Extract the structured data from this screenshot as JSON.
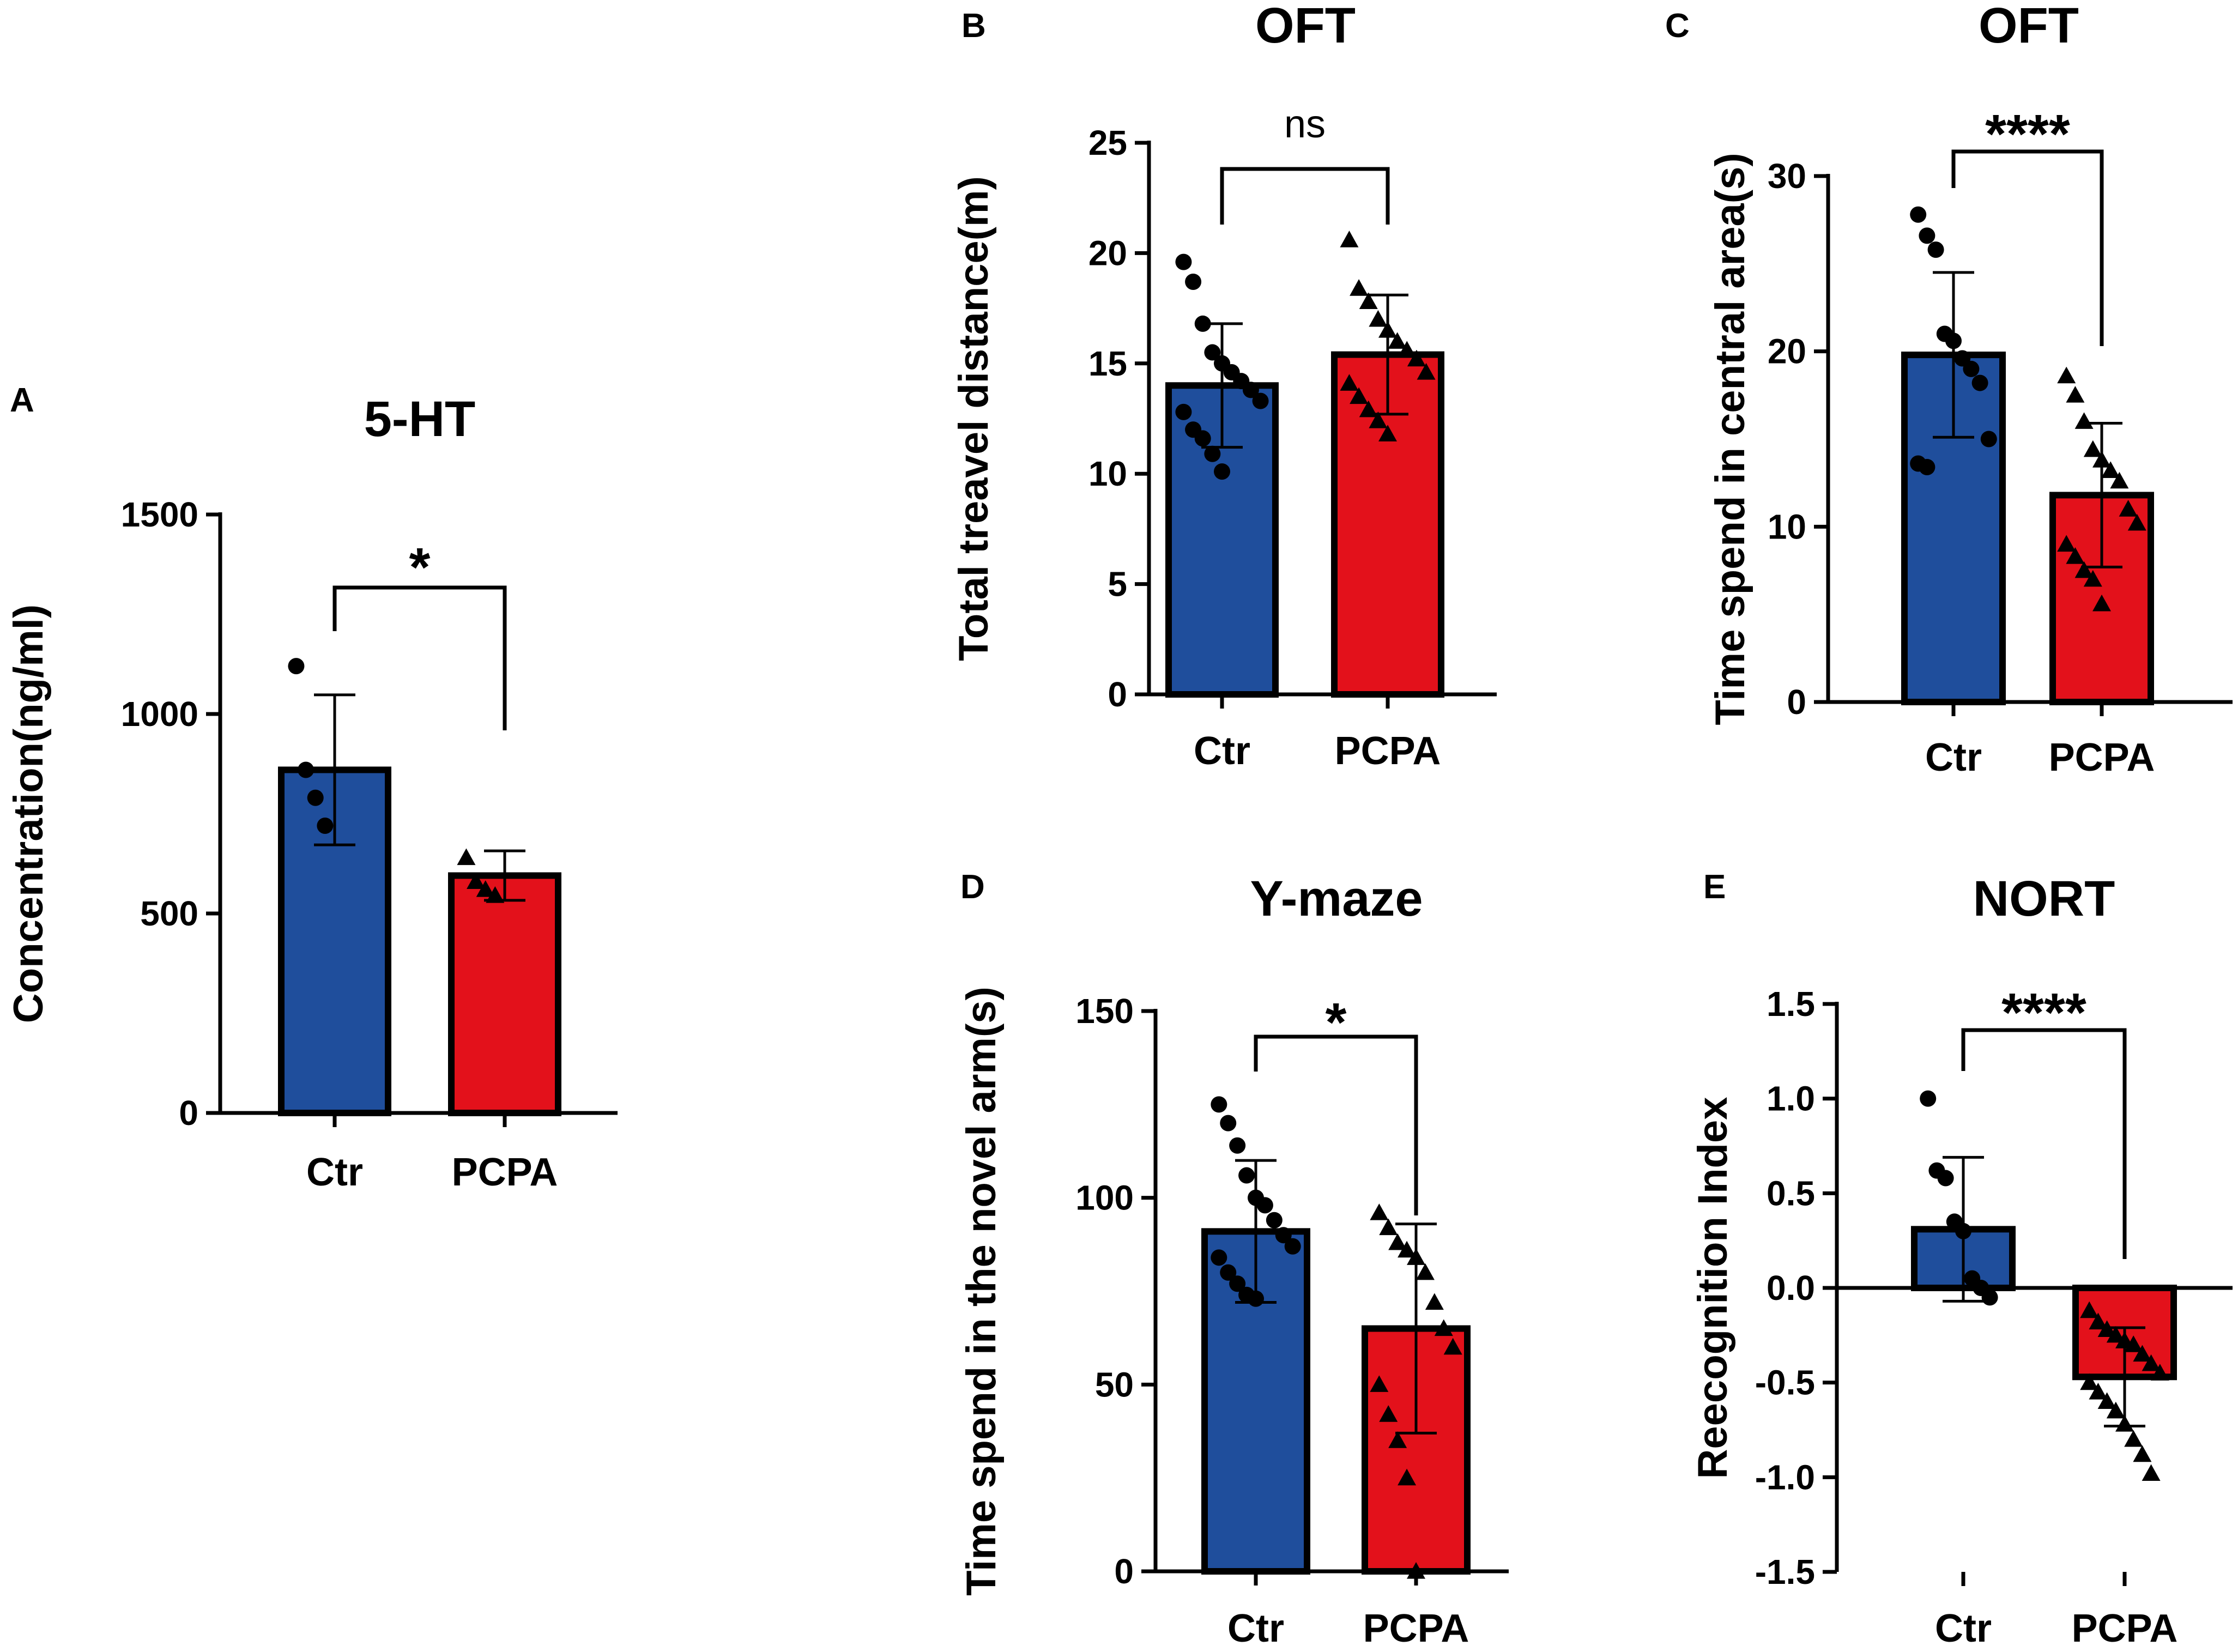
{
  "colors": {
    "ctr": "#1f4e9c",
    "pcpa": "#e3111b",
    "axis": "#000000"
  },
  "chart_data": [
    {
      "panel": "A",
      "type": "bar",
      "title": "5-HT",
      "ylabel": "Concentration(ng/ml)",
      "xlabel": "",
      "ylim": [
        0,
        1500
      ],
      "yticks": [
        0,
        500,
        1000,
        1500
      ],
      "yticklabels": [
        "0",
        "500",
        "1000",
        "1500"
      ],
      "categories": [
        "Ctr",
        "PCPA"
      ],
      "values": [
        860,
        595
      ],
      "sd": [
        188,
        62
      ],
      "points": [
        [
          1120,
          860,
          790,
          720
        ],
        [
          640,
          580,
          560,
          545
        ]
      ],
      "markers": [
        "circle",
        "triangle"
      ],
      "significance": "*"
    },
    {
      "panel": "B",
      "type": "bar",
      "title": "OFT",
      "ylabel": "Total treavel distance(m)",
      "xlabel": "",
      "ylim": [
        0,
        25
      ],
      "yticks": [
        0,
        5,
        10,
        15,
        20,
        25
      ],
      "yticklabels": [
        "0",
        "5",
        "10",
        "15",
        "20",
        "25"
      ],
      "categories": [
        "Ctr",
        "PCPA"
      ],
      "values": [
        14.0,
        15.4
      ],
      "sd": [
        2.8,
        2.7
      ],
      "points": [
        [
          19.6,
          18.7,
          16.8,
          15.5,
          15.0,
          14.6,
          14.2,
          13.8,
          13.3,
          12.8,
          12.0,
          11.6,
          10.9,
          10.1
        ],
        [
          20.6,
          18.4,
          17.8,
          17.0,
          16.5,
          16.0,
          15.6,
          15.2,
          14.6,
          14.1,
          13.5,
          12.9,
          12.4,
          11.8
        ]
      ],
      "markers": [
        "circle",
        "triangle"
      ],
      "significance": "ns"
    },
    {
      "panel": "C",
      "type": "bar",
      "title": "OFT",
      "ylabel": "Time spend in central area(s)",
      "xlabel": "",
      "ylim": [
        0,
        30
      ],
      "yticks": [
        0,
        10,
        20,
        30
      ],
      "yticklabels": [
        "0",
        "10",
        "20",
        "30"
      ],
      "categories": [
        "Ctr",
        "PCPA"
      ],
      "values": [
        19.8,
        11.8
      ],
      "sd": [
        4.7,
        4.1
      ],
      "points": [
        [
          27.8,
          26.6,
          25.8,
          21.0,
          20.6,
          19.6,
          19.0,
          18.2,
          15.0,
          13.6,
          13.4
        ],
        [
          18.6,
          17.5,
          16.0,
          14.4,
          13.8,
          13.2,
          12.6,
          11.0,
          10.2,
          9.0,
          8.3,
          7.5,
          7.0,
          5.6
        ]
      ],
      "markers": [
        "circle",
        "triangle"
      ],
      "significance": "****"
    },
    {
      "panel": "D",
      "type": "bar",
      "title": "Y-maze",
      "ylabel": "Time spend in the novel arm(s)",
      "xlabel": "",
      "ylim": [
        0,
        150
      ],
      "yticks": [
        0,
        50,
        100,
        150
      ],
      "yticklabels": [
        "0",
        "50",
        "100",
        "150"
      ],
      "categories": [
        "Ctr",
        "PCPA"
      ],
      "values": [
        91,
        65
      ],
      "sd": [
        19,
        28
      ],
      "points": [
        [
          125,
          120,
          114,
          106,
          100,
          98,
          94,
          90,
          87,
          84,
          80,
          77,
          74,
          73
        ],
        [
          96,
          92,
          88,
          86,
          84,
          80,
          72,
          65,
          60,
          50,
          42,
          35,
          25,
          0
        ]
      ],
      "markers": [
        "circle",
        "triangle"
      ],
      "significance": "*"
    },
    {
      "panel": "E",
      "type": "bar",
      "title": "NORT",
      "ylabel": "Reecognition Index",
      "xlabel": "",
      "ylim": [
        -1.5,
        1.5
      ],
      "yticks": [
        -1.5,
        -1.0,
        -0.5,
        0.0,
        0.5,
        1.0,
        1.5
      ],
      "yticklabels": [
        "-1.5",
        "-1.0",
        "-0.5",
        "0.0",
        "0.5",
        "1.0",
        "1.5"
      ],
      "categories": [
        "Ctr",
        "PCPA"
      ],
      "values": [
        0.31,
        -0.47
      ],
      "sd": [
        0.38,
        0.26
      ],
      "points": [
        [
          1.0,
          0.62,
          0.58,
          0.35,
          0.3,
          0.05,
          0.0,
          -0.05
        ],
        [
          -0.12,
          -0.18,
          -0.22,
          -0.25,
          -0.28,
          -0.3,
          -0.35,
          -0.4,
          -0.45,
          -0.5,
          -0.55,
          -0.6,
          -0.65,
          -0.72,
          -0.8,
          -0.88,
          -0.98
        ]
      ],
      "markers": [
        "circle",
        "triangle"
      ],
      "significance": "****"
    }
  ]
}
